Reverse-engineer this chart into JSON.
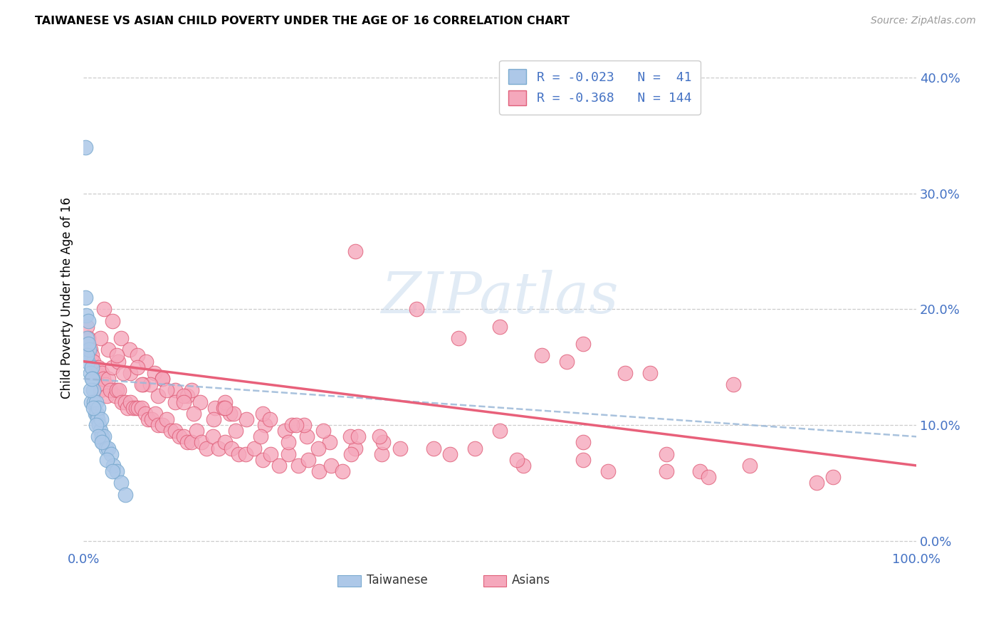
{
  "title": "TAIWANESE VS ASIAN CHILD POVERTY UNDER THE AGE OF 16 CORRELATION CHART",
  "source": "Source: ZipAtlas.com",
  "ylabel": "Child Poverty Under the Age of 16",
  "ytick_values": [
    0.0,
    0.1,
    0.2,
    0.3,
    0.4
  ],
  "xlim": [
    0.0,
    1.0
  ],
  "ylim": [
    -0.005,
    0.425
  ],
  "watermark": "ZIPatlas",
  "legend_line1": "R = -0.023   N =  41",
  "legend_line2": "R = -0.368   N = 144",
  "color_taiwanese": "#adc8e8",
  "color_taiwanese_edge": "#7aaacf",
  "color_asians": "#f5a8bc",
  "color_asians_edge": "#e0607a",
  "color_line_taiwanese": "#9ab8d8",
  "color_line_asians": "#e8607a",
  "tw_x": [
    0.002,
    0.003,
    0.004,
    0.005,
    0.006,
    0.007,
    0.008,
    0.009,
    0.01,
    0.011,
    0.012,
    0.013,
    0.014,
    0.015,
    0.016,
    0.017,
    0.018,
    0.019,
    0.02,
    0.021,
    0.022,
    0.023,
    0.025,
    0.027,
    0.03,
    0.033,
    0.036,
    0.04,
    0.045,
    0.05,
    0.002,
    0.004,
    0.006,
    0.008,
    0.01,
    0.012,
    0.015,
    0.018,
    0.022,
    0.028,
    0.035
  ],
  "tw_y": [
    0.34,
    0.195,
    0.175,
    0.155,
    0.19,
    0.165,
    0.145,
    0.12,
    0.15,
    0.14,
    0.13,
    0.12,
    0.11,
    0.12,
    0.11,
    0.105,
    0.115,
    0.1,
    0.095,
    0.105,
    0.09,
    0.085,
    0.09,
    0.08,
    0.08,
    0.075,
    0.065,
    0.06,
    0.05,
    0.04,
    0.21,
    0.16,
    0.17,
    0.13,
    0.14,
    0.115,
    0.1,
    0.09,
    0.085,
    0.07,
    0.06
  ],
  "as_x": [
    0.004,
    0.006,
    0.008,
    0.01,
    0.012,
    0.014,
    0.016,
    0.018,
    0.02,
    0.022,
    0.024,
    0.026,
    0.028,
    0.03,
    0.032,
    0.035,
    0.038,
    0.04,
    0.043,
    0.046,
    0.05,
    0.053,
    0.056,
    0.06,
    0.063,
    0.066,
    0.07,
    0.074,
    0.078,
    0.082,
    0.086,
    0.09,
    0.095,
    0.1,
    0.105,
    0.11,
    0.115,
    0.12,
    0.125,
    0.13,
    0.136,
    0.142,
    0.148,
    0.155,
    0.162,
    0.17,
    0.178,
    0.186,
    0.195,
    0.205,
    0.215,
    0.225,
    0.235,
    0.246,
    0.258,
    0.27,
    0.283,
    0.297,
    0.311,
    0.326,
    0.025,
    0.035,
    0.045,
    0.055,
    0.065,
    0.075,
    0.085,
    0.095,
    0.11,
    0.125,
    0.14,
    0.158,
    0.176,
    0.196,
    0.218,
    0.242,
    0.268,
    0.296,
    0.326,
    0.358,
    0.03,
    0.042,
    0.056,
    0.072,
    0.09,
    0.11,
    0.132,
    0.156,
    0.183,
    0.213,
    0.246,
    0.282,
    0.321,
    0.02,
    0.04,
    0.065,
    0.095,
    0.13,
    0.17,
    0.215,
    0.265,
    0.32,
    0.38,
    0.048,
    0.08,
    0.12,
    0.168,
    0.224,
    0.288,
    0.36,
    0.44,
    0.528,
    0.07,
    0.12,
    0.18,
    0.25,
    0.33,
    0.42,
    0.52,
    0.63,
    0.1,
    0.17,
    0.255,
    0.355,
    0.47,
    0.6,
    0.74,
    0.88,
    0.58,
    0.68,
    0.78,
    0.5,
    0.6,
    0.7,
    0.8,
    0.9,
    0.4,
    0.5,
    0.6,
    0.7,
    0.45,
    0.55,
    0.65,
    0.75
  ],
  "as_y": [
    0.185,
    0.175,
    0.165,
    0.16,
    0.155,
    0.145,
    0.145,
    0.15,
    0.13,
    0.145,
    0.14,
    0.135,
    0.125,
    0.14,
    0.13,
    0.15,
    0.125,
    0.13,
    0.13,
    0.12,
    0.12,
    0.115,
    0.12,
    0.115,
    0.115,
    0.115,
    0.115,
    0.11,
    0.105,
    0.105,
    0.11,
    0.1,
    0.1,
    0.105,
    0.095,
    0.095,
    0.09,
    0.09,
    0.085,
    0.085,
    0.095,
    0.085,
    0.08,
    0.09,
    0.08,
    0.085,
    0.08,
    0.075,
    0.075,
    0.08,
    0.07,
    0.075,
    0.065,
    0.075,
    0.065,
    0.07,
    0.06,
    0.065,
    0.06,
    0.25,
    0.2,
    0.19,
    0.175,
    0.165,
    0.16,
    0.155,
    0.145,
    0.14,
    0.13,
    0.125,
    0.12,
    0.115,
    0.11,
    0.105,
    0.1,
    0.095,
    0.09,
    0.085,
    0.08,
    0.075,
    0.165,
    0.155,
    0.145,
    0.135,
    0.125,
    0.12,
    0.11,
    0.105,
    0.095,
    0.09,
    0.085,
    0.08,
    0.075,
    0.175,
    0.16,
    0.15,
    0.14,
    0.13,
    0.12,
    0.11,
    0.1,
    0.09,
    0.08,
    0.145,
    0.135,
    0.125,
    0.115,
    0.105,
    0.095,
    0.085,
    0.075,
    0.065,
    0.135,
    0.12,
    0.11,
    0.1,
    0.09,
    0.08,
    0.07,
    0.06,
    0.13,
    0.115,
    0.1,
    0.09,
    0.08,
    0.07,
    0.06,
    0.05,
    0.155,
    0.145,
    0.135,
    0.095,
    0.085,
    0.075,
    0.065,
    0.055,
    0.2,
    0.185,
    0.17,
    0.06,
    0.175,
    0.16,
    0.145,
    0.055
  ]
}
